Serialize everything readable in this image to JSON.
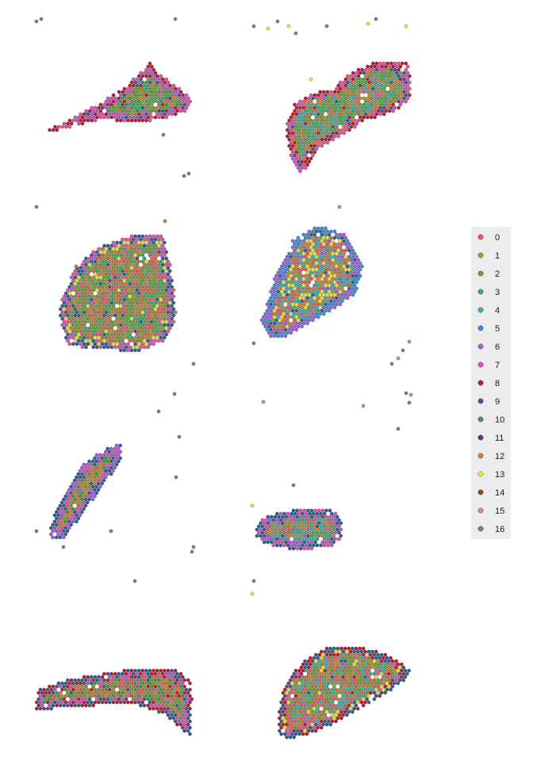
{
  "chart_data": {
    "type": "scatter",
    "title": "",
    "xlabel": "",
    "ylabel": "",
    "description_kind": "spatial transcriptomics cluster map, 8 tissue sections in a 2x4 grid",
    "legend": {
      "placement": "right",
      "entries": [
        {
          "label": "0",
          "color": "#e05c5c"
        },
        {
          "label": "1",
          "color": "#c08a3a"
        },
        {
          "label": "2",
          "color": "#7a9a2a"
        },
        {
          "label": "3",
          "color": "#3aae5a"
        },
        {
          "label": "4",
          "color": "#3ab0b0"
        },
        {
          "label": "5",
          "color": "#3a8ed8"
        },
        {
          "label": "6",
          "color": "#a65ce0"
        },
        {
          "label": "7",
          "color": "#e052b4"
        },
        {
          "label": "8",
          "color": "#c0182a"
        },
        {
          "label": "9",
          "color": "#2a5f9a"
        },
        {
          "label": "10",
          "color": "#3e9a3e"
        },
        {
          "label": "11",
          "color": "#6a2a8a"
        },
        {
          "label": "12",
          "color": "#e07a2a"
        },
        {
          "label": "13",
          "color": "#f0ea3a"
        },
        {
          "label": "14",
          "color": "#8a4a1e"
        },
        {
          "label": "15",
          "color": "#e07ab0"
        },
        {
          "label": "16",
          "color": "#808080"
        }
      ]
    },
    "sections": [
      {
        "id": "s1",
        "row": 1,
        "col": 1,
        "dominant_clusters": [
          1,
          2,
          3,
          10
        ],
        "edge_clusters": [
          7,
          8,
          9,
          6
        ],
        "outlier_clusters": [
          16
        ]
      },
      {
        "id": "s2",
        "row": 1,
        "col": 2,
        "dominant_clusters": [
          1,
          2,
          3,
          4
        ],
        "edge_clusters": [
          7,
          8,
          9,
          12
        ],
        "outlier_clusters": [
          16,
          13
        ]
      },
      {
        "id": "s3",
        "row": 2,
        "col": 1,
        "dominant_clusters": [
          1,
          2,
          0,
          3
        ],
        "edge_clusters": [
          9,
          7,
          13
        ],
        "outlier_clusters": [
          16,
          12
        ]
      },
      {
        "id": "s4",
        "row": 2,
        "col": 2,
        "dominant_clusters": [
          0,
          1,
          4,
          13
        ],
        "edge_clusters": [
          6,
          5,
          9
        ],
        "outlier_clusters": [
          16,
          15
        ]
      },
      {
        "id": "s5",
        "row": 3,
        "col": 1,
        "dominant_clusters": [
          1,
          12,
          2,
          10
        ],
        "edge_clusters": [
          9,
          6,
          7
        ],
        "outlier_clusters": [
          16
        ]
      },
      {
        "id": "s6",
        "row": 3,
        "col": 2,
        "dominant_clusters": [
          0,
          1,
          3,
          4
        ],
        "edge_clusters": [
          7,
          9,
          6
        ],
        "outlier_clusters": [
          16,
          13
        ]
      },
      {
        "id": "s7",
        "row": 4,
        "col": 1,
        "dominant_clusters": [
          1,
          0,
          2,
          10
        ],
        "edge_clusters": [
          9,
          8,
          7,
          6
        ],
        "outlier_clusters": []
      },
      {
        "id": "s8",
        "row": 4,
        "col": 2,
        "dominant_clusters": [
          1,
          0,
          2,
          4
        ],
        "edge_clusters": [
          9,
          8,
          7,
          13
        ],
        "outlier_clusters": []
      }
    ]
  }
}
